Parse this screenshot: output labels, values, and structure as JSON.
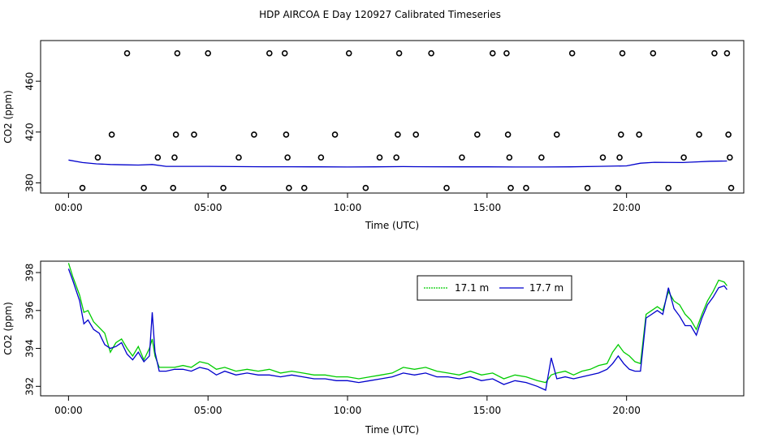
{
  "page": {
    "title": "HDP AIRCOA E  Day 120927  Calibrated Timeseries"
  },
  "colors": {
    "series_17_1": "#00cc00",
    "series_17_7": "#0000cc",
    "markers": "#000000"
  },
  "chart_data": [
    {
      "type": "line",
      "title": "",
      "xlabel": "Time (UTC)",
      "ylabel": "CO2 (ppm)",
      "xlim": [
        -1.0,
        24.2
      ],
      "ylim": [
        372,
        492
      ],
      "xticks": [
        0,
        5,
        10,
        15,
        20
      ],
      "xtick_labels": [
        "00:00",
        "05:00",
        "10:00",
        "15:00",
        "20:00"
      ],
      "yticks": [
        380,
        420,
        460
      ],
      "ytick_labels": [
        "380",
        "420",
        "460"
      ],
      "grid": false,
      "series": [
        {
          "name": "",
          "color": "#0000cc",
          "x": [
            0.0,
            0.5,
            1.0,
            1.5,
            2.0,
            2.5,
            3.0,
            3.5,
            4.0,
            5.0,
            6.0,
            7.0,
            8.0,
            9.0,
            10.0,
            11.0,
            12.0,
            13.0,
            14.0,
            15.0,
            16.0,
            17.0,
            18.0,
            19.0,
            20.0,
            20.5,
            21.0,
            22.0,
            22.5,
            23.0,
            23.6
          ],
          "values": [
            398.0,
            396.0,
            395.0,
            394.5,
            394.2,
            394.0,
            394.5,
            393.0,
            393.0,
            393.0,
            392.8,
            392.7,
            392.7,
            392.6,
            392.5,
            392.6,
            392.8,
            392.7,
            392.6,
            392.6,
            392.5,
            392.5,
            392.6,
            393.0,
            393.4,
            395.5,
            396.2,
            396.0,
            396.5,
            397.0,
            397.2
          ]
        },
        {
          "name": "",
          "type": "scatter",
          "color": "#000000",
          "x": [
            0.5,
            1.05,
            1.55,
            2.1,
            2.7,
            3.2,
            3.75,
            3.8,
            3.85,
            3.9,
            4.5,
            5.0,
            5.55,
            6.1,
            6.65,
            7.2,
            7.75,
            7.8,
            7.85,
            7.9,
            8.45,
            9.05,
            9.55,
            10.05,
            10.65,
            11.15,
            11.75,
            11.8,
            11.85,
            12.45,
            13.0,
            13.55,
            14.1,
            14.65,
            15.2,
            15.7,
            15.75,
            15.8,
            15.85,
            16.4,
            16.95,
            17.5,
            18.05,
            18.6,
            19.15,
            19.7,
            19.75,
            19.8,
            19.85,
            20.45,
            20.95,
            21.5,
            22.05,
            22.6,
            23.15,
            23.6,
            23.65,
            23.7,
            23.75
          ],
          "values": [
            376,
            400,
            418,
            482,
            376,
            400,
            376,
            400,
            418,
            482,
            418,
            482,
            376,
            400,
            418,
            482,
            482,
            418,
            400,
            376,
            376,
            400,
            418,
            482,
            376,
            400,
            400,
            418,
            482,
            418,
            482,
            376,
            400,
            418,
            482,
            482,
            418,
            400,
            376,
            376,
            400,
            418,
            482,
            376,
            400,
            376,
            400,
            418,
            482,
            418,
            482,
            376,
            400,
            418,
            482,
            482,
            418,
            400,
            376
          ]
        }
      ]
    },
    {
      "type": "line",
      "title": "",
      "xlabel": "Time (UTC)",
      "ylabel": "CO2 (ppm)",
      "xlim": [
        -1.0,
        24.2
      ],
      "ylim": [
        391.5,
        398.6
      ],
      "xticks": [
        0,
        5,
        10,
        15,
        20
      ],
      "xtick_labels": [
        "00:00",
        "05:00",
        "10:00",
        "15:00",
        "20:00"
      ],
      "yticks": [
        392,
        394,
        396,
        398
      ],
      "ytick_labels": [
        "392",
        "394",
        "396",
        "398"
      ],
      "grid": false,
      "legend": "top-right",
      "series": [
        {
          "name": "17.1 m",
          "color": "#00cc00",
          "x": [
            0.0,
            0.15,
            0.4,
            0.55,
            0.7,
            0.9,
            1.1,
            1.3,
            1.5,
            1.7,
            1.9,
            2.1,
            2.3,
            2.5,
            2.7,
            2.9,
            3.0,
            3.1,
            3.25,
            3.5,
            3.8,
            4.1,
            4.4,
            4.7,
            5.0,
            5.3,
            5.6,
            6.0,
            6.4,
            6.8,
            7.2,
            7.6,
            8.0,
            8.4,
            8.8,
            9.2,
            9.6,
            10.0,
            10.4,
            10.8,
            11.2,
            11.6,
            12.0,
            12.4,
            12.8,
            13.2,
            13.6,
            14.0,
            14.4,
            14.8,
            15.2,
            15.6,
            16.0,
            16.4,
            16.8,
            17.1,
            17.3,
            17.5,
            17.8,
            18.1,
            18.4,
            18.7,
            19.0,
            19.3,
            19.5,
            19.7,
            19.9,
            20.1,
            20.3,
            20.5,
            20.7,
            20.9,
            21.1,
            21.3,
            21.5,
            21.7,
            21.9,
            22.1,
            22.3,
            22.5,
            22.7,
            22.9,
            23.1,
            23.3,
            23.5,
            23.6
          ],
          "values": [
            398.5,
            397.8,
            396.8,
            395.9,
            396.0,
            395.4,
            395.1,
            394.8,
            393.8,
            394.3,
            394.5,
            394.0,
            393.6,
            394.1,
            393.4,
            394.0,
            394.5,
            393.6,
            393.0,
            393.0,
            393.0,
            393.1,
            393.0,
            393.3,
            393.2,
            392.9,
            393.0,
            392.8,
            392.9,
            392.8,
            392.9,
            392.7,
            392.8,
            392.7,
            392.6,
            392.6,
            392.5,
            392.5,
            392.4,
            392.5,
            392.6,
            392.7,
            393.0,
            392.9,
            393.0,
            392.8,
            392.7,
            392.6,
            392.8,
            392.6,
            392.7,
            392.4,
            392.6,
            392.5,
            392.3,
            392.2,
            392.6,
            392.7,
            392.8,
            392.6,
            392.8,
            392.9,
            393.1,
            393.2,
            393.8,
            394.2,
            393.8,
            393.6,
            393.3,
            393.2,
            395.8,
            396.0,
            396.2,
            396.0,
            397.0,
            396.5,
            396.3,
            395.8,
            395.5,
            395.0,
            395.8,
            396.5,
            397.0,
            397.6,
            397.5,
            397.3
          ]
        },
        {
          "name": "17.7 m",
          "color": "#0000cc",
          "x": [
            0.0,
            0.15,
            0.4,
            0.55,
            0.7,
            0.9,
            1.1,
            1.3,
            1.5,
            1.7,
            1.9,
            2.1,
            2.3,
            2.5,
            2.7,
            2.9,
            3.0,
            3.1,
            3.25,
            3.5,
            3.8,
            4.1,
            4.4,
            4.7,
            5.0,
            5.3,
            5.6,
            6.0,
            6.4,
            6.8,
            7.2,
            7.6,
            8.0,
            8.4,
            8.8,
            9.2,
            9.6,
            10.0,
            10.4,
            10.8,
            11.2,
            11.6,
            12.0,
            12.4,
            12.8,
            13.2,
            13.6,
            14.0,
            14.4,
            14.8,
            15.2,
            15.6,
            16.0,
            16.4,
            16.8,
            17.1,
            17.3,
            17.5,
            17.8,
            18.1,
            18.4,
            18.7,
            19.0,
            19.3,
            19.5,
            19.7,
            19.9,
            20.1,
            20.3,
            20.5,
            20.7,
            20.9,
            21.1,
            21.3,
            21.5,
            21.7,
            21.9,
            22.1,
            22.3,
            22.5,
            22.7,
            22.9,
            23.1,
            23.3,
            23.5,
            23.6
          ],
          "values": [
            398.2,
            397.6,
            396.5,
            395.3,
            395.5,
            395.0,
            394.8,
            394.2,
            394.0,
            394.1,
            394.3,
            393.7,
            393.4,
            393.8,
            393.3,
            393.6,
            395.9,
            393.8,
            392.8,
            392.8,
            392.9,
            392.9,
            392.8,
            393.0,
            392.9,
            392.6,
            392.8,
            392.6,
            392.7,
            392.6,
            392.6,
            392.5,
            392.6,
            392.5,
            392.4,
            392.4,
            392.3,
            392.3,
            392.2,
            392.3,
            392.4,
            392.5,
            392.7,
            392.6,
            392.7,
            392.5,
            392.5,
            392.4,
            392.5,
            392.3,
            392.4,
            392.1,
            392.3,
            392.2,
            392.0,
            391.8,
            393.5,
            392.4,
            392.5,
            392.4,
            392.5,
            392.6,
            392.7,
            392.9,
            393.2,
            393.6,
            393.2,
            392.9,
            392.8,
            392.8,
            395.6,
            395.8,
            396.0,
            395.8,
            397.2,
            396.1,
            395.7,
            395.2,
            395.2,
            394.7,
            395.6,
            396.3,
            396.7,
            397.2,
            397.3,
            397.1
          ]
        }
      ]
    }
  ]
}
